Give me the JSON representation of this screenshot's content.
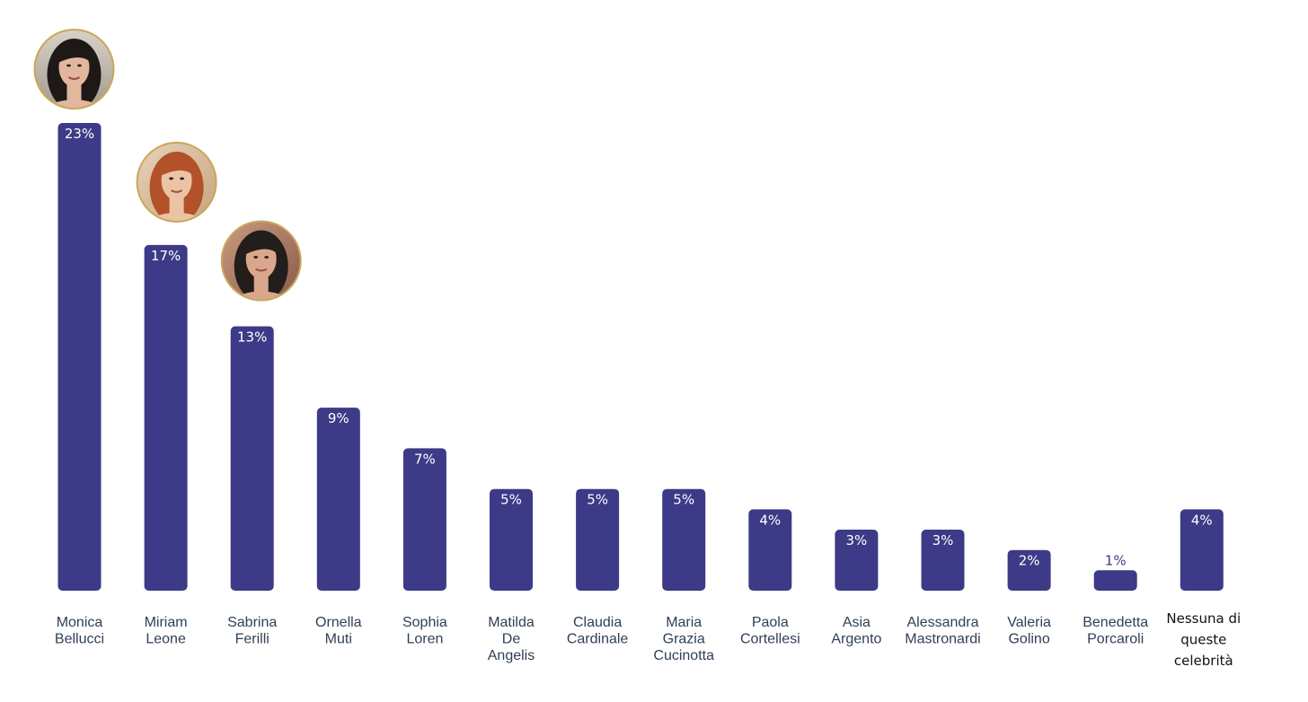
{
  "chart_data": {
    "type": "bar",
    "categories": [
      "Monica Bellucci",
      "Miriam Leone",
      "Sabrina Ferilli",
      "Ornella Muti",
      "Sophia Loren",
      "Matilda De Angelis",
      "Claudia Cardinale",
      "Maria Grazia Cucinotta",
      "Paola Cortellesi",
      "Asia Argento",
      "Alessandra Mastronardi",
      "Valeria Golino",
      "Benedetta Porcaroli",
      "Nessuna di queste celebrità"
    ],
    "category_lines": [
      [
        "Monica",
        "Bellucci"
      ],
      [
        "Miriam",
        "Leone"
      ],
      [
        "Sabrina",
        "Ferilli"
      ],
      [
        "Ornella",
        "Muti"
      ],
      [
        "Sophia",
        "Loren"
      ],
      [
        "Matilda",
        "De",
        "Angelis"
      ],
      [
        "Claudia",
        "Cardinale"
      ],
      [
        "Maria",
        "Grazia",
        "Cucinotta"
      ],
      [
        "Paola",
        "Cortellesi"
      ],
      [
        "Asia",
        "Argento"
      ],
      [
        "Alessandra",
        "Mastronardi"
      ],
      [
        "Valeria",
        "Golino"
      ],
      [
        "Benedetta",
        "Porcaroli"
      ],
      [
        "Nessuna di",
        "queste",
        "celebrità"
      ]
    ],
    "values": [
      23,
      17,
      13,
      9,
      7,
      5,
      5,
      5,
      4,
      3,
      3,
      2,
      1,
      4
    ],
    "value_labels": [
      "23%",
      "17%",
      "13%",
      "9%",
      "7%",
      "5%",
      "5%",
      "5%",
      "4%",
      "3%",
      "3%",
      "2%",
      "1%",
      "4%"
    ],
    "ylim": [
      0,
      23
    ],
    "grid": false,
    "legend": "none",
    "bar_color": "#3d3a87",
    "avatars": [
      {
        "category": "Monica Bellucci",
        "icon": "portrait-photo-icon"
      },
      {
        "category": "Miriam Leone",
        "icon": "portrait-photo-icon"
      },
      {
        "category": "Sabrina Ferilli",
        "icon": "portrait-photo-icon"
      }
    ]
  }
}
